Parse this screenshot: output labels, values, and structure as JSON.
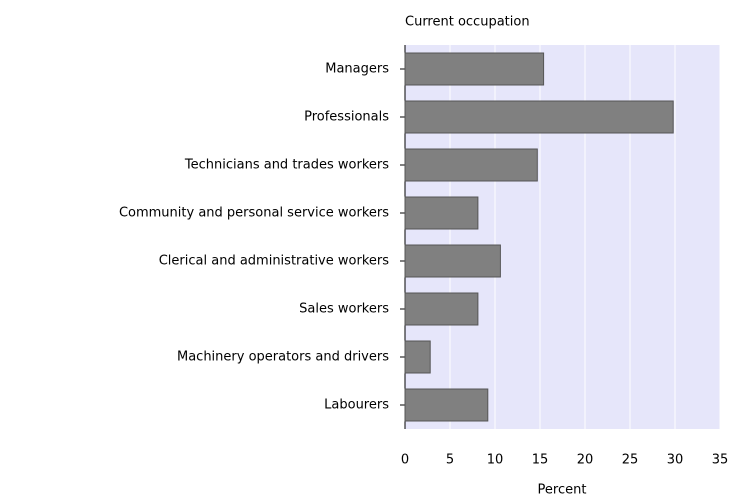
{
  "chart_data": {
    "type": "bar",
    "orientation": "horizontal",
    "title": "Current occupation",
    "x_label": "Percent",
    "categories": [
      "Managers",
      "Professionals",
      "Technicians and trades workers",
      "Community and personal service workers",
      "Clerical and administrative workers",
      "Sales workers",
      "Machinery operators and drivers",
      "Labourers"
    ],
    "values": [
      15.4,
      29.8,
      14.7,
      8.1,
      10.6,
      8.1,
      2.8,
      9.2
    ],
    "color": "#808080",
    "xlim": [
      0,
      35
    ],
    "xticks": [
      0,
      5,
      10,
      15,
      20,
      25,
      30,
      35
    ],
    "grid": true
  }
}
